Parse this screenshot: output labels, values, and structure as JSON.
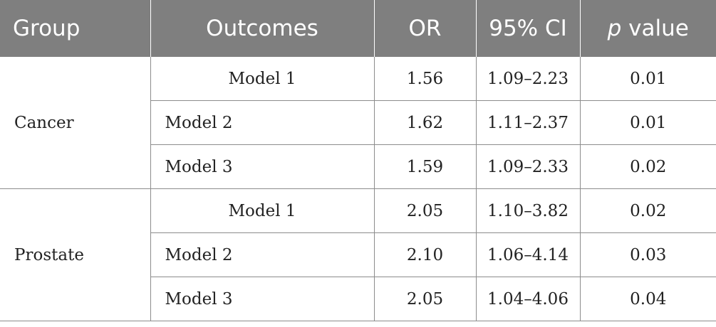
{
  "table": {
    "headers": {
      "group": "Group",
      "outcomes": "Outcomes",
      "or": "OR",
      "ci": "95% CI",
      "p_italic": "p",
      "p_rest": " value"
    },
    "groups": [
      {
        "name": "Cancer",
        "rows": [
          {
            "outcome": "Model 1",
            "or": "1.56",
            "ci": "1.09–2.23",
            "p": "0.01"
          },
          {
            "outcome": "Model 2",
            "or": "1.62",
            "ci": "1.11–2.37",
            "p": "0.01"
          },
          {
            "outcome": "Model 3",
            "or": "1.59",
            "ci": "1.09–2.33",
            "p": "0.02"
          }
        ]
      },
      {
        "name": "Prostate",
        "rows": [
          {
            "outcome": "Model 1",
            "or": "2.05",
            "ci": "1.10–3.82",
            "p": "0.02"
          },
          {
            "outcome": "Model 2",
            "or": "2.10",
            "ci": "1.06–4.14",
            "p": "0.03"
          },
          {
            "outcome": "Model 3",
            "or": "2.05",
            "ci": "1.04–4.06",
            "p": "0.04"
          }
        ]
      }
    ]
  }
}
